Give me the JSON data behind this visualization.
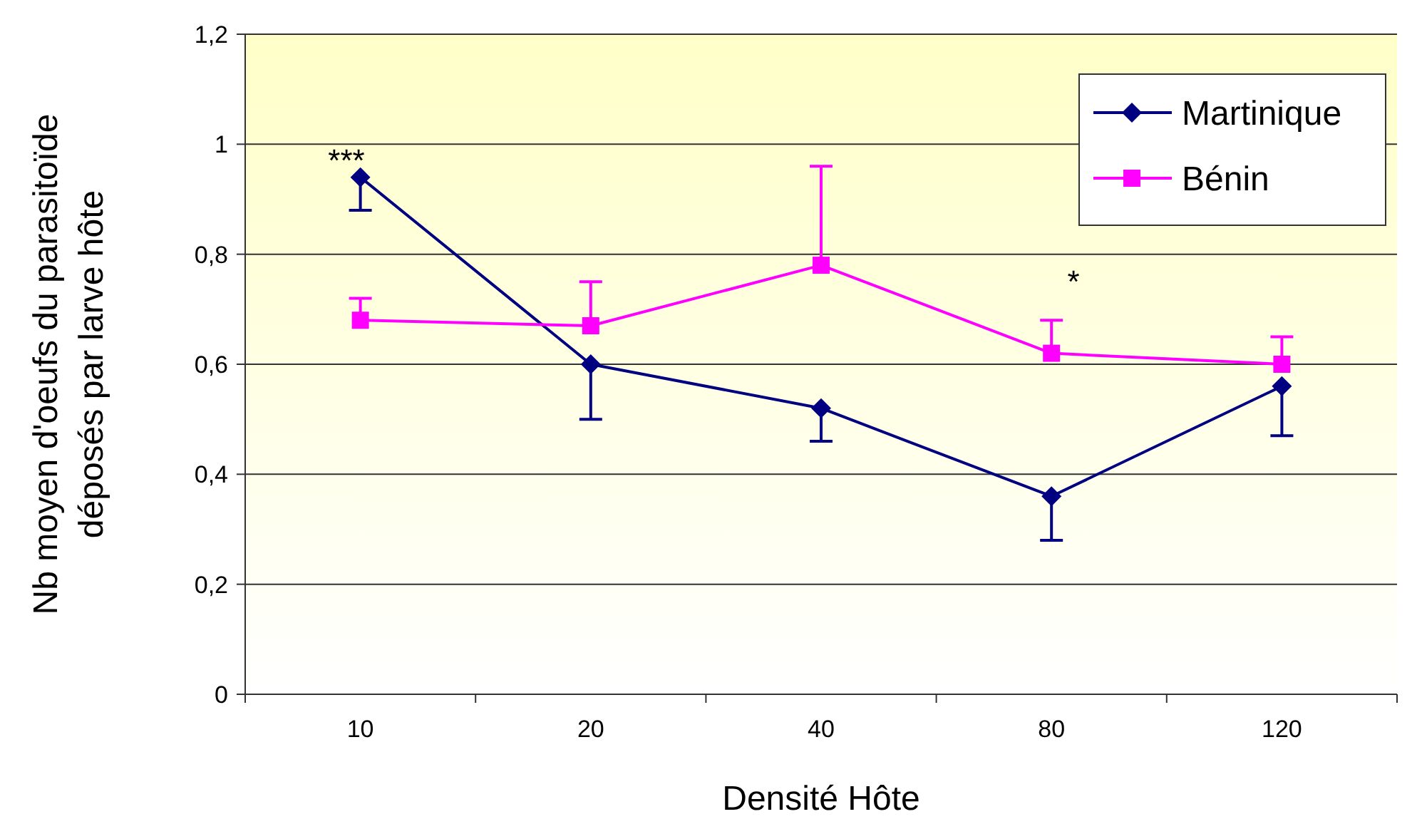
{
  "chart_data": {
    "type": "line",
    "xlabel": "Densité Hôte",
    "ylabel": "Nb moyen d'oeufs du parasitoïde déposés par larve hôte",
    "categories": [
      "10",
      "20",
      "40",
      "80",
      "120"
    ],
    "series": [
      {
        "name": "Martinique",
        "color": "#000080",
        "marker": "diamond",
        "values": [
          0.94,
          0.6,
          0.52,
          0.36,
          0.56
        ],
        "errors": [
          [
            0.88,
            0.94
          ],
          [
            0.5,
            0.6
          ],
          [
            0.46,
            0.52
          ],
          [
            0.28,
            0.36
          ],
          [
            0.47,
            0.56
          ]
        ]
      },
      {
        "name": "Bénin",
        "color": "#ff00ff",
        "marker": "square",
        "values": [
          0.68,
          0.67,
          0.78,
          0.62,
          0.6
        ],
        "errors": [
          [
            0.68,
            0.72
          ],
          [
            0.67,
            0.75
          ],
          [
            0.78,
            0.96
          ],
          [
            0.62,
            0.68
          ],
          [
            0.6,
            0.65
          ]
        ]
      }
    ],
    "ylim": [
      0,
      1.2
    ],
    "yticks": [
      0,
      {
        "value": 0.2,
        "label": "0,2"
      },
      {
        "value": 0.4,
        "label": "0,4"
      },
      {
        "value": 0.6,
        "label": "0,6"
      },
      {
        "value": 0.8,
        "label": "0,8"
      },
      1,
      {
        "value": 1.2,
        "label": "1,2"
      }
    ],
    "grid": "y",
    "legend": "top right",
    "annotations": [
      "***",
      "*"
    ]
  }
}
